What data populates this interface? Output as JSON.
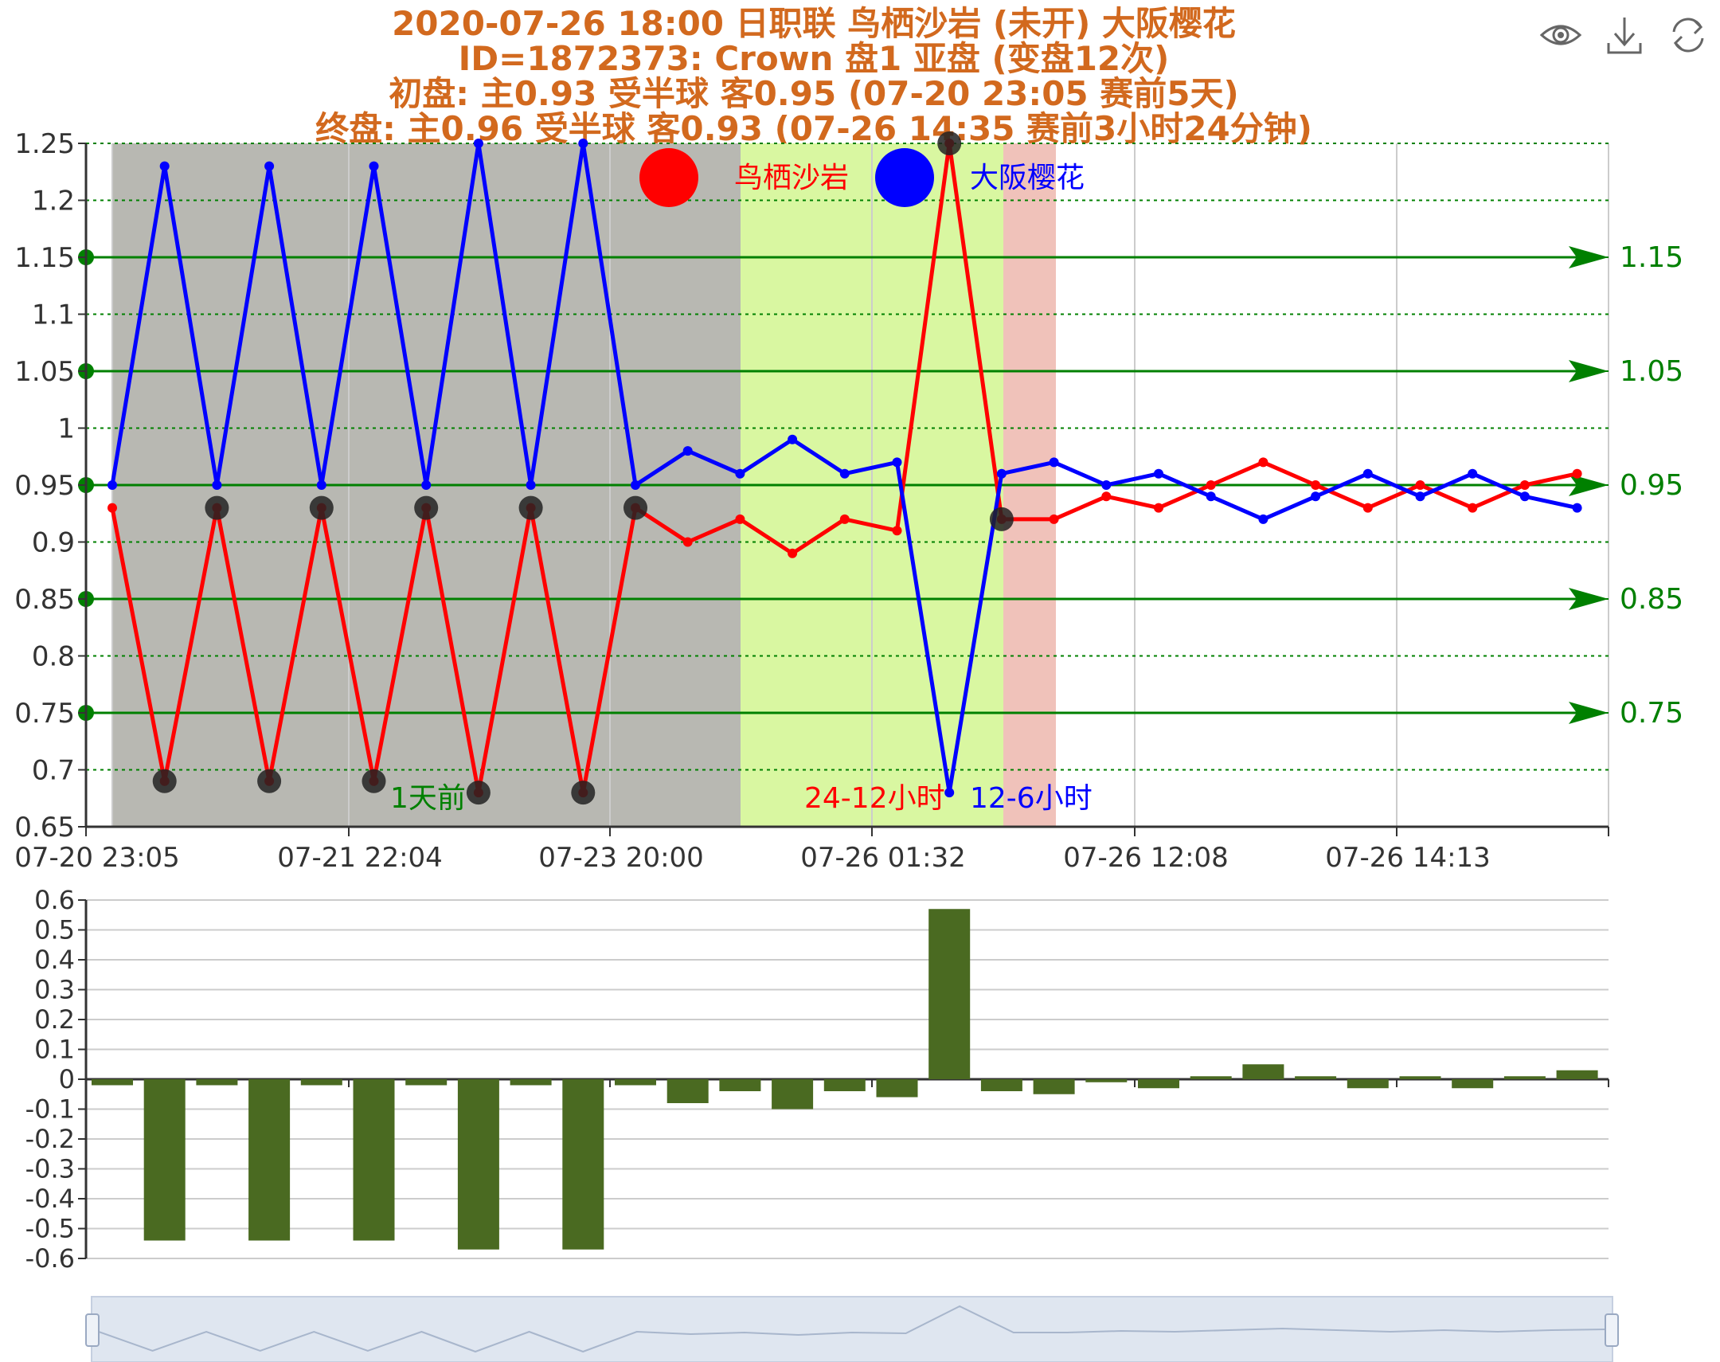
{
  "title": {
    "line1": "2020-07-26 18:00 日职联 鸟栖沙岩 (未开) 大阪樱花",
    "line2": "ID=1872373: Crown  盘1 亚盘 (变盘12次)",
    "line3": "初盘:    主0.93    受半球  客0.95     (07-20 23:05 赛前5天)",
    "line4": "终盘:    主0.96    受半球  客0.93     (07-26 14:35 赛前3小时24分钟)",
    "color": "#d2691e"
  },
  "toolbar": {
    "view_icon": "eye-icon",
    "download_icon": "download-icon",
    "refresh_icon": "refresh-icon"
  },
  "legend": [
    {
      "name": "鸟栖沙岩",
      "color": "#ff0000"
    },
    {
      "name": "大阪樱花",
      "color": "#0000ff"
    }
  ],
  "zones": [
    {
      "label": "1天前",
      "color": "#b8b8b2",
      "label_color": "#008000"
    },
    {
      "label": "24-12小时",
      "color": "#d9f7a1",
      "label_color": "#ff0000"
    },
    {
      "label": "12-6小时",
      "color": "#f0c2ba",
      "label_color": "#0000ff"
    }
  ],
  "chart_data": [
    {
      "type": "line",
      "x_ticks": [
        "07-20 23:05",
        "07-21 22:04",
        "07-23 20:00",
        "07-26 01:32",
        "07-26 12:08",
        "07-26 14:13"
      ],
      "ylim": [
        0.65,
        1.25
      ],
      "y_ticks": [
        "0.65",
        "0.7",
        "0.75",
        "0.8",
        "0.85",
        "0.9",
        "0.95",
        "1",
        "1.05",
        "1.1",
        "1.15",
        "1.2",
        "1.25"
      ],
      "reference_lines": [
        "1.15",
        "1.05",
        "0.95",
        "0.85",
        "0.75"
      ],
      "reference_values": [
        1.15,
        1.05,
        0.95,
        0.85,
        0.75
      ],
      "grid": true,
      "series": [
        {
          "name": "鸟栖沙岩",
          "color": "#ff0000",
          "values": [
            0.93,
            0.69,
            0.93,
            0.69,
            0.93,
            0.69,
            0.93,
            0.68,
            0.93,
            0.68,
            0.93,
            0.9,
            0.92,
            0.89,
            0.92,
            0.91,
            1.25,
            0.92,
            0.92,
            0.94,
            0.93,
            0.95,
            0.97,
            0.95,
            0.93,
            0.95,
            0.93,
            0.95,
            0.96
          ]
        },
        {
          "name": "大阪樱花",
          "color": "#0000ff",
          "values": [
            0.95,
            1.23,
            0.95,
            1.23,
            0.95,
            1.23,
            0.95,
            1.25,
            0.95,
            1.25,
            0.95,
            0.98,
            0.96,
            0.99,
            0.96,
            0.97,
            0.68,
            0.96,
            0.97,
            0.95,
            0.96,
            0.94,
            0.92,
            0.94,
            0.96,
            0.94,
            0.96,
            0.94,
            0.93
          ]
        }
      ],
      "highlight_points": [
        {
          "index": 2,
          "value": 0.93
        },
        {
          "index": 4,
          "value": 0.93
        },
        {
          "index": 6,
          "value": 0.93
        },
        {
          "index": 8,
          "value": 0.93
        },
        {
          "index": 10,
          "value": 0.93
        },
        {
          "index": 1,
          "value": 0.69
        },
        {
          "index": 3,
          "value": 0.69
        },
        {
          "index": 5,
          "value": 0.69
        },
        {
          "index": 7,
          "value": 0.68
        },
        {
          "index": 9,
          "value": 0.68
        },
        {
          "index": 16,
          "value": 1.25
        },
        {
          "index": 17,
          "value": 0.92
        }
      ]
    },
    {
      "type": "bar",
      "ylim": [
        -0.6,
        0.6
      ],
      "y_ticks": [
        "0.6",
        "0.5",
        "0.4",
        "0.3",
        "0.2",
        "0.1",
        "0",
        "-0.1",
        "-0.2",
        "-0.3",
        "-0.4",
        "-0.5",
        "-0.6"
      ],
      "color": "#4a6a21",
      "values": [
        -0.02,
        -0.54,
        -0.02,
        -0.54,
        -0.02,
        -0.54,
        -0.02,
        -0.57,
        -0.02,
        -0.57,
        -0.02,
        -0.08,
        -0.04,
        -0.1,
        -0.04,
        -0.06,
        0.57,
        -0.04,
        -0.05,
        -0.01,
        -0.03,
        0.01,
        0.05,
        0.01,
        -0.03,
        0.01,
        -0.03,
        0.01,
        0.03
      ]
    }
  ]
}
